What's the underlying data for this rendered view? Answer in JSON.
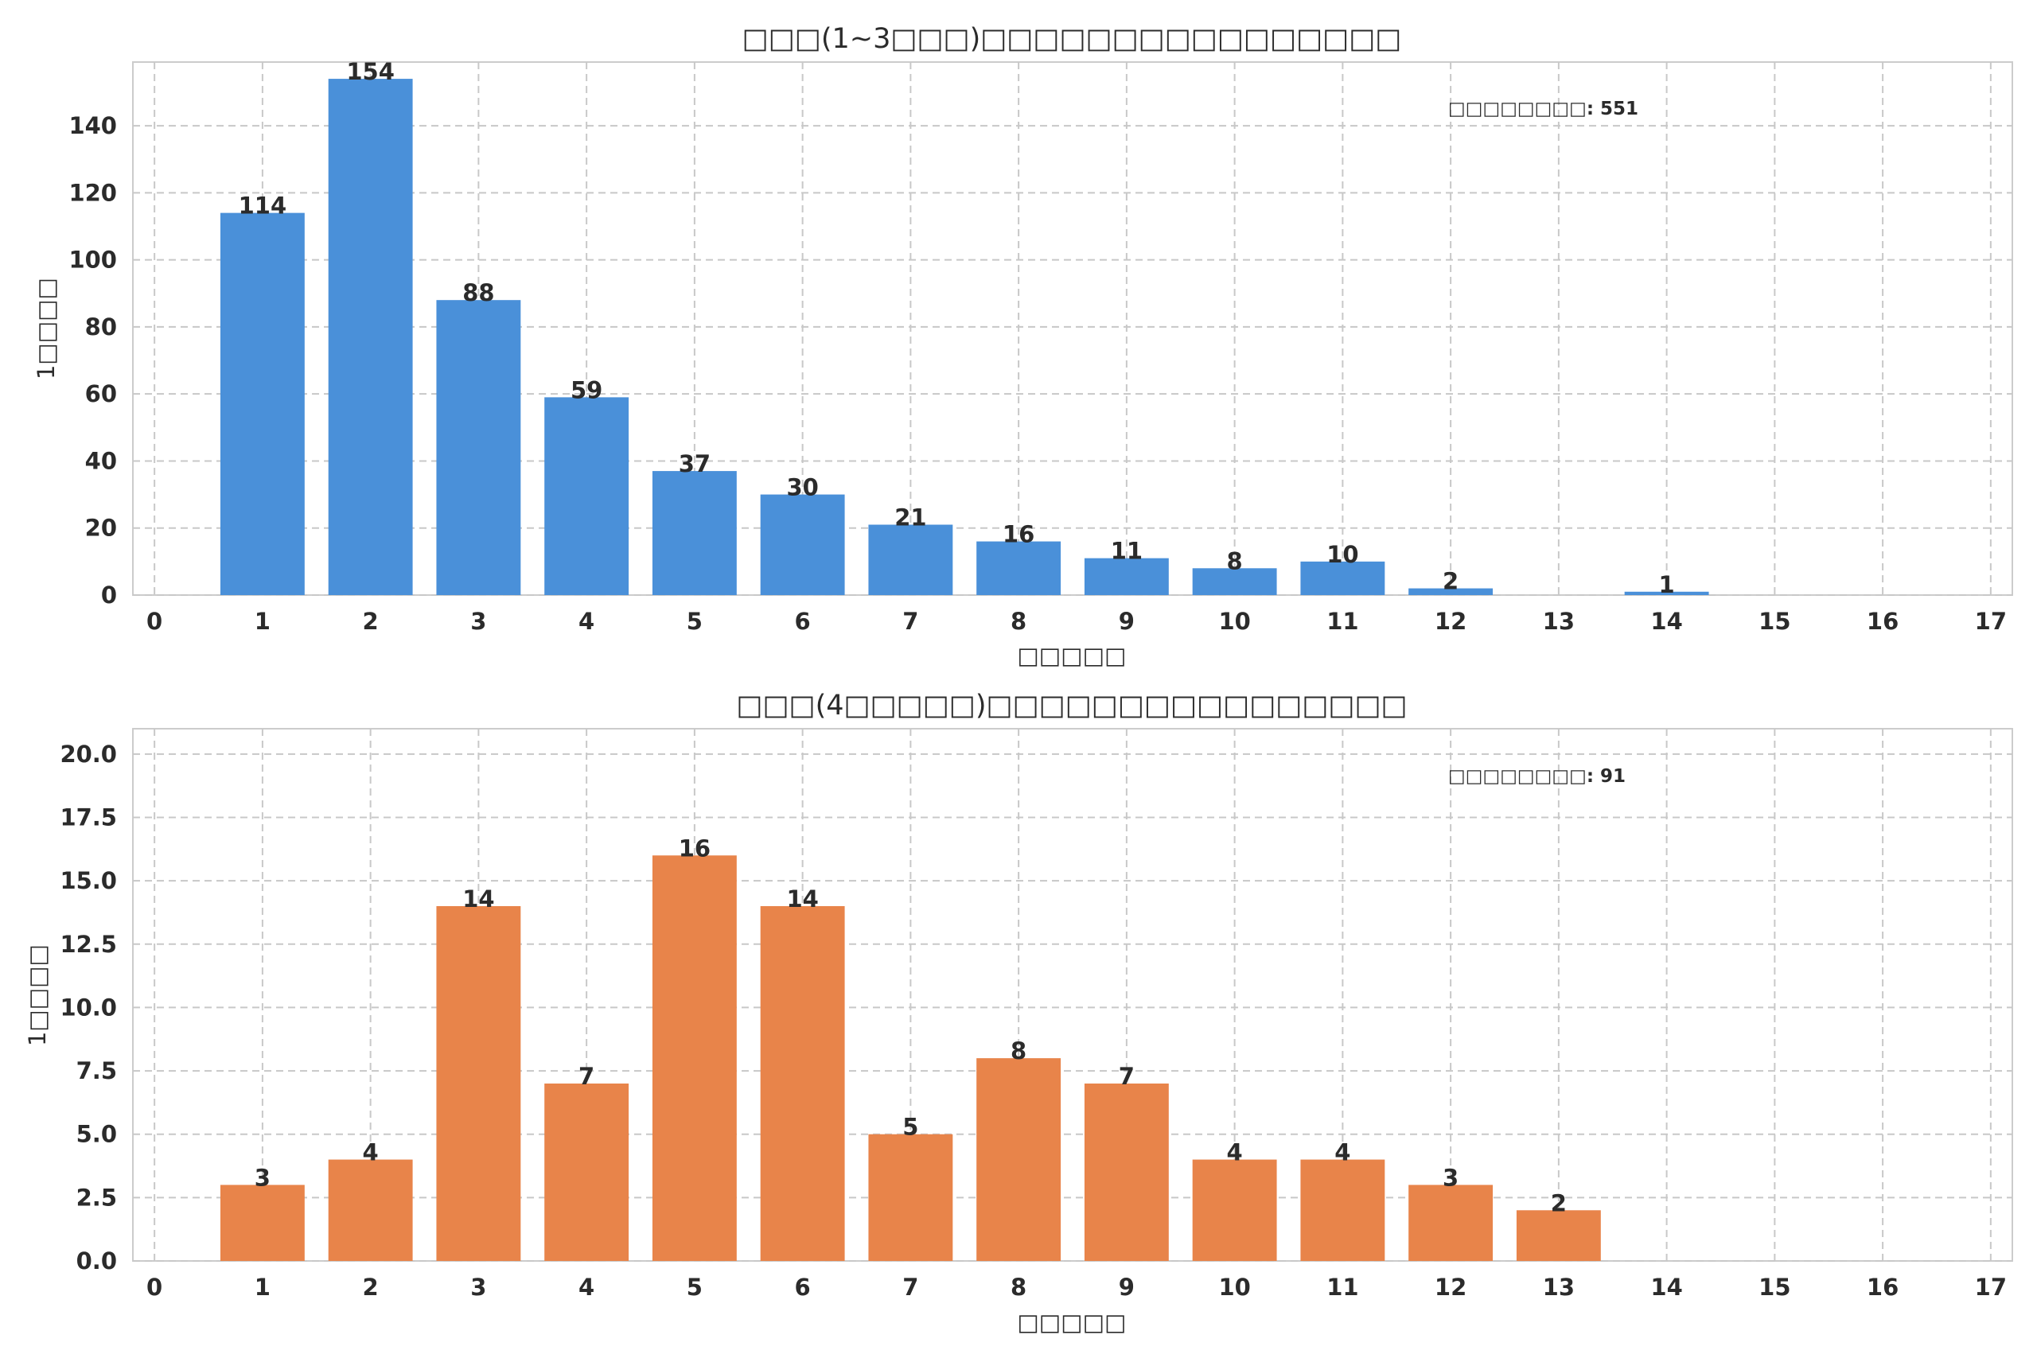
{
  "chart_data": [
    {
      "type": "bar",
      "title": "□□□(1~3□□□)□□□□□□□□□□□□□□□□",
      "xlabel": "□□□□□",
      "ylabel": "1□□□□",
      "annotation": "□□□□□□□□: 551",
      "color": "#4a90d9",
      "x": [
        1,
        2,
        3,
        4,
        5,
        6,
        7,
        8,
        9,
        10,
        11,
        12,
        13,
        14
      ],
      "values": [
        114,
        154,
        88,
        59,
        37,
        30,
        21,
        16,
        11,
        8,
        10,
        2,
        0,
        1
      ],
      "value_labels": [
        "114",
        "154",
        "88",
        "59",
        "37",
        "30",
        "21",
        "16",
        "11",
        "8",
        "10",
        "2",
        "",
        "1"
      ],
      "xticks": [
        "0",
        "1",
        "2",
        "3",
        "4",
        "5",
        "6",
        "7",
        "8",
        "9",
        "10",
        "11",
        "12",
        "13",
        "14",
        "15",
        "16",
        "17"
      ],
      "yticks": [
        "0",
        "20",
        "40",
        "60",
        "80",
        "100",
        "120",
        "140"
      ],
      "xlim": [
        -0.2,
        17.2
      ],
      "ylim": [
        0,
        159
      ],
      "grid": true
    },
    {
      "type": "bar",
      "title": "□□□(4□□□□□)□□□□□□□□□□□□□□□□",
      "xlabel": "□□□□□",
      "ylabel": "1□□□□",
      "annotation": "□□□□□□□□: 91",
      "color": "#e8844a",
      "x": [
        1,
        2,
        3,
        4,
        5,
        6,
        7,
        8,
        9,
        10,
        11,
        12,
        13
      ],
      "values": [
        3,
        4,
        14,
        7,
        16,
        14,
        5,
        8,
        7,
        4,
        4,
        3,
        2
      ],
      "value_labels": [
        "3",
        "4",
        "14",
        "7",
        "16",
        "14",
        "5",
        "8",
        "7",
        "4",
        "4",
        "3",
        "2"
      ],
      "xticks": [
        "0",
        "1",
        "2",
        "3",
        "4",
        "5",
        "6",
        "7",
        "8",
        "9",
        "10",
        "11",
        "12",
        "13",
        "14",
        "15",
        "16",
        "17"
      ],
      "yticks": [
        "0.0",
        "2.5",
        "5.0",
        "7.5",
        "10.0",
        "12.5",
        "15.0",
        "17.5",
        "20.0"
      ],
      "xlim": [
        -0.2,
        17.2
      ],
      "ylim": [
        0,
        21
      ],
      "grid": true
    }
  ]
}
